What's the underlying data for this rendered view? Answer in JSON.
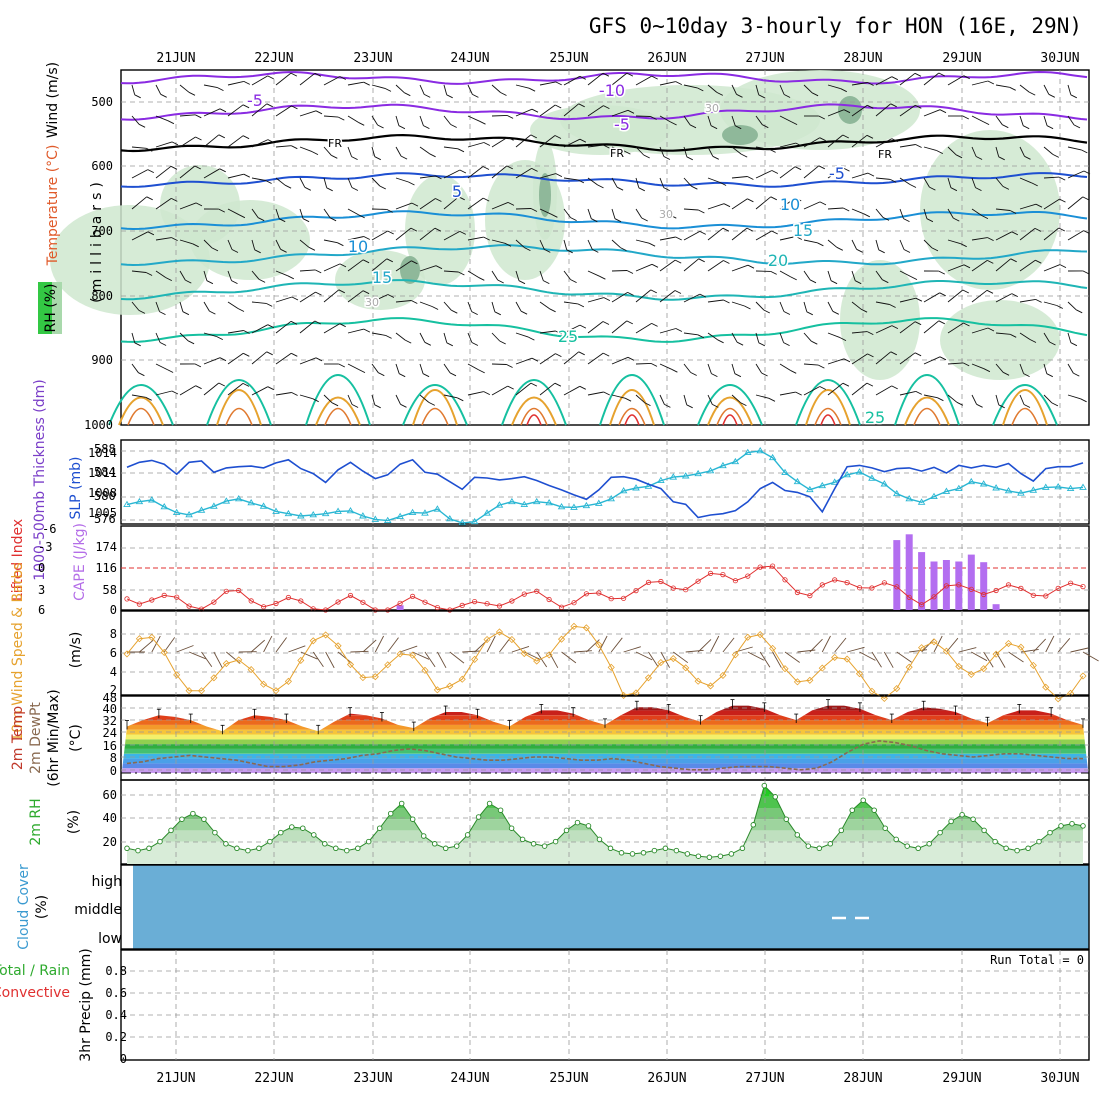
{
  "title": "GFS 0~10day 3-hourly for HON (16E, 29N)",
  "dates": [
    "21JUN",
    "22JUN",
    "23JUN",
    "24JUN",
    "25JUN",
    "26JUN",
    "27JUN",
    "28JUN",
    "29JUN",
    "30JUN"
  ],
  "colors": {
    "purple": "#8a2be2",
    "black": "#000000",
    "blue": "#1e4fd0",
    "cyan": "#29b6d3",
    "teal": "#16c0a0",
    "orange": "#e6a22e",
    "red": "#e03030",
    "green_rh": "#2ecc40",
    "cloud": "#6aaed6"
  },
  "upper_air": {
    "ylabel_units": "(millibars)",
    "ylabel_wind": "Wind (m/s)",
    "ylabel_temp": "Temperature (°C)",
    "ylabel_rh": "RH (%)",
    "pressure_ticks": [
      500,
      600,
      700,
      800,
      900,
      1000
    ],
    "isotherm_labels": [
      "-10",
      "-5",
      "-5",
      "FR",
      "FR",
      "FR",
      "-5",
      "5",
      "10",
      "15",
      "20",
      "25",
      "10",
      "15",
      "25",
      "30",
      "30",
      "30"
    ]
  },
  "slp_panel": {
    "ylabel_thk": "1000-500mb Thickness (dm)",
    "ylabel_slp": "SLP (mb)",
    "thk_ticks": [
      "588",
      "584",
      "580",
      "576"
    ],
    "slp_ticks": [
      "1014",
      "1011",
      "1008",
      "1005"
    ]
  },
  "li_panel": {
    "ylabel_li": "Lifted Index",
    "ylabel_cape": "CAPE (J/kg)",
    "li_ticks": [
      "-6",
      "-3",
      "0",
      "3",
      "6"
    ],
    "cape_ticks": [
      "174",
      "116",
      "58",
      "0"
    ]
  },
  "wind10_panel": {
    "ylabel_a": "10m Wind Speed & Barbs",
    "ylabel_b": "(m/s)",
    "ticks": [
      "8",
      "6",
      "4",
      "2"
    ]
  },
  "temp_panel": {
    "ylabel_a": "2m Temp",
    "ylabel_b": "2m DewPt",
    "ylabel_c": "(6hr Min/Max)",
    "ylabel_d": "(°C)",
    "ticks": [
      "48",
      "40",
      "32",
      "24",
      "16",
      "8",
      "0"
    ]
  },
  "rh_panel": {
    "ylabel": "2m RH",
    "units": "(%)",
    "ticks": [
      "60",
      "40",
      "20"
    ]
  },
  "cloud_panel": {
    "ylabel": "Cloud Cover",
    "units": "(%)",
    "levels": [
      "high",
      "middle",
      "low"
    ]
  },
  "precip_panel": {
    "ylabel_a": "Total / Rain",
    "ylabel_b": "Convective",
    "ylabel_c": "3hr Precip (mm)",
    "ticks": [
      "0.8",
      "0.6",
      "0.4",
      "0.2",
      "0"
    ],
    "run_total": "Run Total = 0"
  },
  "chart_data": {
    "type": "meteogram",
    "x_dates": [
      "21JUN",
      "22JUN",
      "23JUN",
      "24JUN",
      "25JUN",
      "26JUN",
      "27JUN",
      "28JUN",
      "29JUN",
      "30JUN"
    ],
    "slp_mb": [
      1012.4,
      1013.2,
      1013.5,
      1012.9,
      1011.3,
      1013.2,
      1013.4,
      1011.6,
      1012.3,
      1012.5,
      1012.6,
      1012.3,
      1013.1,
      1013.6,
      1012.2,
      1011.4,
      1010.0,
      1012.0,
      1013.2,
      1011.8,
      1010.6,
      1011.2,
      1012.9,
      1013.6,
      1011.6,
      1011.3,
      1010.1,
      1008.9,
      1010.8,
      1010.7,
      1010.4,
      1010.6,
      1010.9,
      1010.3,
      1009.5,
      1008.8,
      1008.0,
      1007.3,
      1008.8,
      1010.8,
      1010.9,
      1010.5,
      1009.7,
      1009.0,
      1006.9,
      1006.5,
      1004.4,
      1004.8,
      1005.0,
      1005.5,
      1006.9,
      1009.0,
      1010.0,
      1008.7,
      1008.4,
      1007.7,
      1005.3,
      1009.0,
      1012.5,
      1012.7,
      1012.3,
      1011.7,
      1012.2,
      1012.3,
      1011.8,
      1012.4,
      1011.5,
      1012.7,
      1012.3,
      1012.7,
      1012.4,
      1013.0,
      1011.4,
      1010.2,
      1012.2,
      1012.5,
      1012.5,
      1013.1
    ],
    "thickness_dm": [
      578.4,
      578.9,
      579.2,
      578.0,
      577.0,
      576.6,
      577.4,
      578.1,
      579.0,
      579.4,
      578.7,
      578.1,
      577.2,
      576.8,
      576.4,
      576.6,
      576.8,
      577.2,
      577.3,
      576.4,
      575.8,
      575.6,
      576.3,
      577.0,
      576.9,
      577.6,
      575.9,
      575.2,
      575.4,
      576.9,
      578.3,
      578.9,
      578.4,
      578.9,
      578.7,
      578.0,
      577.9,
      578.2,
      578.6,
      579.4,
      580.8,
      581.3,
      581.6,
      582.6,
      583.2,
      583.4,
      583.8,
      584.3,
      585.2,
      585.9,
      587.5,
      587.8,
      586.6,
      584.0,
      582.4,
      581.0,
      581.7,
      582.3,
      583.6,
      584.1,
      583.0,
      582.0,
      580.3,
      579.4,
      578.8,
      579.8,
      580.7,
      581.2,
      582.4,
      582.0,
      581.3,
      580.8,
      580.4,
      580.9,
      581.4,
      581.5,
      581.2,
      581.4
    ],
    "cape_jkg": [
      0,
      0,
      0,
      0,
      0,
      0,
      0,
      0,
      0,
      0,
      0,
      0,
      0,
      0,
      0,
      0,
      0,
      0,
      0,
      0,
      0,
      0,
      13,
      0,
      0,
      0,
      0,
      0,
      0,
      0,
      0,
      0,
      0,
      0,
      0,
      0,
      0,
      0,
      0,
      0,
      0,
      0,
      0,
      0,
      0,
      0,
      0,
      0,
      0,
      0,
      0,
      0,
      0,
      0,
      0,
      0,
      0,
      0,
      0,
      0,
      0,
      0,
      193,
      209,
      160,
      134,
      138,
      134,
      153,
      132,
      16,
      0,
      0,
      0,
      0,
      0,
      0,
      0
    ],
    "t2m_max_c": [
      29,
      33,
      36,
      35,
      33,
      29,
      26,
      33,
      36,
      35,
      33,
      29,
      26,
      32,
      37,
      36,
      34,
      30,
      28,
      34,
      38,
      38,
      36,
      32,
      29,
      35,
      39,
      39,
      37,
      33,
      30,
      36,
      41,
      41,
      39,
      35,
      32,
      38,
      42,
      42,
      40,
      36,
      33,
      39,
      42,
      42,
      40,
      36,
      33,
      38,
      41,
      40,
      38,
      34,
      31,
      36,
      39,
      39,
      37,
      33,
      30
    ],
    "dewpt_c": [
      6,
      7,
      9,
      10,
      11,
      10,
      9,
      8,
      6,
      4,
      4,
      5,
      7,
      8,
      9,
      11,
      12,
      14,
      15,
      14,
      12,
      10,
      9,
      8,
      8,
      9,
      10,
      10,
      9,
      8,
      8,
      9,
      8,
      6,
      4,
      3,
      2,
      2,
      3,
      4,
      4,
      4,
      3,
      2,
      3,
      7,
      13,
      18,
      20,
      19,
      17,
      14,
      12,
      11,
      10,
      11,
      12,
      12,
      11,
      10,
      9,
      9
    ],
    "rh2m_pct": [
      14,
      12,
      14,
      20,
      30,
      40,
      45,
      40,
      28,
      18,
      14,
      12,
      14,
      20,
      28,
      33,
      32,
      26,
      18,
      14,
      12,
      14,
      20,
      32,
      45,
      54,
      40,
      25,
      18,
      14,
      16,
      26,
      42,
      54,
      48,
      32,
      22,
      18,
      16,
      20,
      30,
      37,
      34,
      22,
      14,
      10,
      9,
      10,
      12,
      14,
      12,
      9,
      7,
      6,
      7,
      9,
      14,
      35,
      70,
      60,
      40,
      26,
      16,
      14,
      18,
      30,
      48,
      57,
      48,
      32,
      22,
      16,
      14,
      18,
      28,
      38,
      44,
      40,
      30,
      20,
      14,
      12,
      14,
      20,
      28,
      34,
      36,
      34
    ]
  }
}
